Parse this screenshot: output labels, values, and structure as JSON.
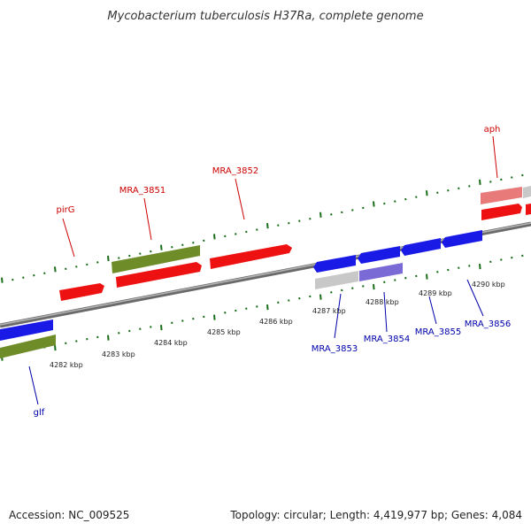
{
  "title": "Mycobacterium tuberculosis H37Ra, complete genome",
  "footer": {
    "accession": "Accession: NC_009525",
    "topology": "Topology: circular; Length: 4,419,977 bp; Genes: 4,084"
  },
  "colors": {
    "gene_red": "#ee1111",
    "gene_green": "#6e8c28",
    "gene_blue": "#1a1ae6",
    "gene_lightred": "#e87a7a",
    "gene_gray": "#c8c8c8",
    "gene_purple": "#7a6ad6",
    "label_red": "#cc0000",
    "label_blue": "#0000aa",
    "tick_green": "#1a6e1a",
    "backbone": "#888888"
  },
  "scale_labels": [
    "4282 kbp",
    "4283 kbp",
    "4284 kbp",
    "4285 kbp",
    "4286 kbp",
    "4287 kbp",
    "4288 kbp",
    "4289 kbp",
    "4290 kbp"
  ],
  "genes_top": [
    {
      "name": "pirG",
      "color": "gene_red"
    },
    {
      "name": "MRA_3851",
      "color": "gene_red"
    },
    {
      "name": "MRA_3852",
      "color": "gene_red"
    },
    {
      "name": "aph",
      "color": "gene_red"
    }
  ],
  "genes_bottom": [
    {
      "name": "glf",
      "color": "gene_blue"
    },
    {
      "name": "MRA_3853",
      "color": "gene_blue"
    },
    {
      "name": "MRA_3854",
      "color": "gene_blue"
    },
    {
      "name": "MRA_3855",
      "color": "gene_blue"
    },
    {
      "name": "MRA_3856",
      "color": "gene_blue"
    }
  ]
}
